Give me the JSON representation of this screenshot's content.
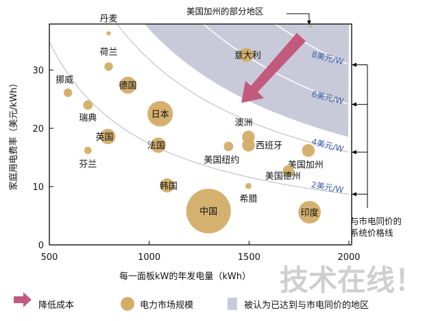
{
  "chart_data": {
    "type": "scatter",
    "subtype": "bubble",
    "title": "",
    "xlabel": "每一面板kW的年发电量（kWh）",
    "ylabel": "家庭用电费率（美元/kWh）",
    "xlim": [
      500,
      2000
    ],
    "ylim": [
      0,
      37.9
    ],
    "xticks": [
      "500",
      "1000",
      "1500",
      "2000"
    ],
    "xtick_values": [
      500,
      1000,
      1500,
      2000
    ],
    "yticks": [
      "0",
      "10",
      "20",
      "30"
    ],
    "ytick_values": [
      0,
      10,
      20,
      30
    ],
    "points": [
      {
        "name": "丹麦",
        "x": 797,
        "y": 36.3,
        "size": 1
      },
      {
        "name": "荷兰",
        "x": 797,
        "y": 30.6,
        "size": 4
      },
      {
        "name": "德国",
        "x": 893,
        "y": 27.4,
        "size": 16
      },
      {
        "name": "挪威",
        "x": 593,
        "y": 26.1,
        "size": 4
      },
      {
        "name": "瑞典",
        "x": 693,
        "y": 24.0,
        "size": 5
      },
      {
        "name": "日本",
        "x": 1055,
        "y": 22.5,
        "size": 36
      },
      {
        "name": "英国",
        "x": 793,
        "y": 18.6,
        "size": 13
      },
      {
        "name": "法国",
        "x": 1045,
        "y": 17.1,
        "size": 13
      },
      {
        "name": "芬兰",
        "x": 693,
        "y": 16.2,
        "size": 3
      },
      {
        "name": "意大利",
        "x": 1486,
        "y": 32.6,
        "size": 11
      },
      {
        "name": "澳洲",
        "x": 1497,
        "y": 18.5,
        "size": 9
      },
      {
        "name": "西班牙",
        "x": 1497,
        "y": 17.1,
        "size": 9
      },
      {
        "name": "美国纽约",
        "x": 1397,
        "y": 16.9,
        "size": 5
      },
      {
        "name": "美国加州",
        "x": 1797,
        "y": 16.2,
        "size": 9
      },
      {
        "name": "美国德州",
        "x": 1697,
        "y": 12.7,
        "size": 7
      },
      {
        "name": "韩国",
        "x": 1090,
        "y": 10.2,
        "size": 11
      },
      {
        "name": "希腊",
        "x": 1497,
        "y": 10.1,
        "size": 2
      },
      {
        "name": "中国",
        "x": 1297,
        "y": 5.8,
        "size": 110
      },
      {
        "name": "印度",
        "x": 1803,
        "y": 5.6,
        "size": 28
      },
      {
        "name": "美国加州的部分地区",
        "x": 1807,
        "y": 37.5,
        "size": 0.5
      }
    ],
    "price_lines": [
      {
        "label": "2美元/W",
        "k": 17400
      },
      {
        "label": "4美元/W",
        "k": 31800
      },
      {
        "label": "6美元/W",
        "k": 48200
      },
      {
        "label": "8美元/W",
        "k": 61800
      }
    ],
    "parity_region_k": 37000,
    "annotations": {
      "price_lines_note": "与市电同价的系统价格线",
      "ca_region": "美国加州的部分地区"
    },
    "legend": {
      "placement": "bottom",
      "items": [
        {
          "label": "降低成本",
          "marker": "arrow"
        },
        {
          "label": "电力市场规模",
          "marker": "bubble"
        },
        {
          "label": "被认为已达到与市电同价的地区",
          "marker": "shade"
        }
      ]
    },
    "watermark": "技术在线！"
  },
  "colors": {
    "bubble": "#d3ad68",
    "shade": "#c9cad9",
    "arrow": "#c25a7d",
    "price_label": "#3b63a8",
    "curve": "#c4c6cf"
  }
}
